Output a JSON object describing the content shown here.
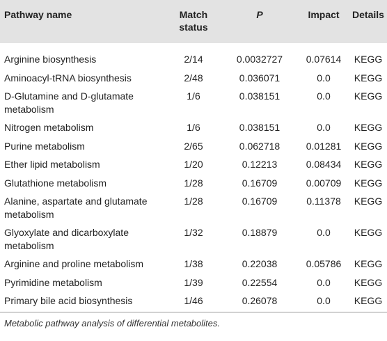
{
  "table": {
    "header": [
      "Pathway name",
      "Match status",
      "P",
      "Impact",
      "Details"
    ],
    "rows": [
      [
        "Arginine biosynthesis",
        "2/14",
        "0.0032727",
        "0.07614",
        "KEGG"
      ],
      [
        "Aminoacyl-tRNA biosynthesis",
        "2/48",
        "0.036071",
        "0.0",
        "KEGG"
      ],
      [
        "D-Glutamine and D-glutamate metabolism",
        "1/6",
        "0.038151",
        "0.0",
        "KEGG"
      ],
      [
        "Nitrogen metabolism",
        "1/6",
        "0.038151",
        "0.0",
        "KEGG"
      ],
      [
        "Purine metabolism",
        "2/65",
        "0.062718",
        "0.01281",
        "KEGG"
      ],
      [
        "Ether lipid metabolism",
        "1/20",
        "0.12213",
        "0.08434",
        "KEGG"
      ],
      [
        "Glutathione metabolism",
        "1/28",
        "0.16709",
        "0.00709",
        "KEGG"
      ],
      [
        "Alanine, aspartate and glutamate metabolism",
        "1/28",
        "0.16709",
        "0.11378",
        "KEGG"
      ],
      [
        "Glyoxylate and dicarboxylate metabolism",
        "1/32",
        "0.18879",
        "0.0",
        "KEGG"
      ],
      [
        "Arginine and proline metabolism",
        "1/38",
        "0.22038",
        "0.05786",
        "KEGG"
      ],
      [
        "Pyrimidine metabolism",
        "1/39",
        "0.22554",
        "0.0",
        "KEGG"
      ],
      [
        "Primary bile acid biosynthesis",
        "1/46",
        "0.26078",
        "0.0",
        "KEGG"
      ]
    ],
    "caption": "Metabolic pathway analysis of differential metabolites."
  }
}
